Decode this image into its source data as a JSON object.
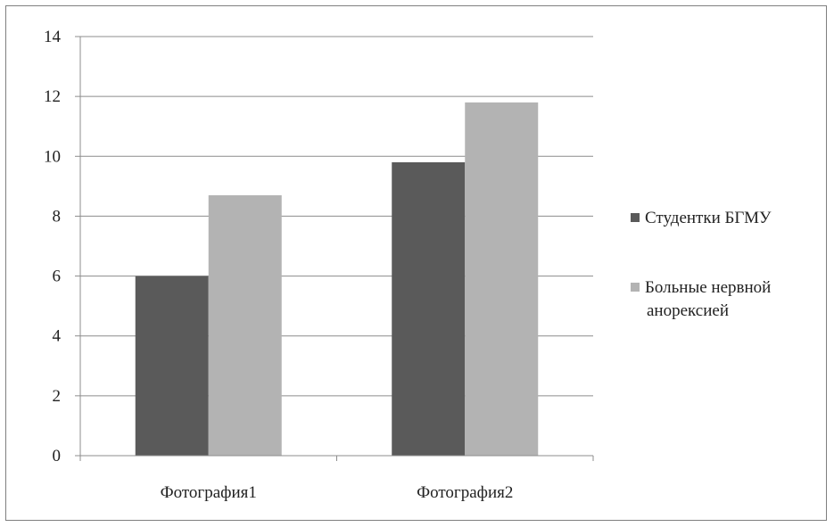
{
  "chart_data": {
    "type": "bar",
    "title": "",
    "xlabel": "",
    "ylabel": "",
    "categories": [
      "Фотография1",
      "Фотография2"
    ],
    "series": [
      {
        "name": "Студентки БГМУ",
        "values": [
          6,
          9.8
        ],
        "color": "#5a5a5a"
      },
      {
        "name": "Больные нервной анорексией",
        "values": [
          8.7,
          11.8
        ],
        "color": "#b3b3b3"
      }
    ],
    "ylim": [
      0,
      14
    ],
    "yticks": [
      0,
      2,
      4,
      6,
      8,
      10,
      12,
      14
    ],
    "grid": true,
    "legend_position": "right"
  },
  "legend_lines": [
    [
      "Студентки БГМУ"
    ],
    [
      "Больные нервной",
      "анорексией"
    ]
  ]
}
